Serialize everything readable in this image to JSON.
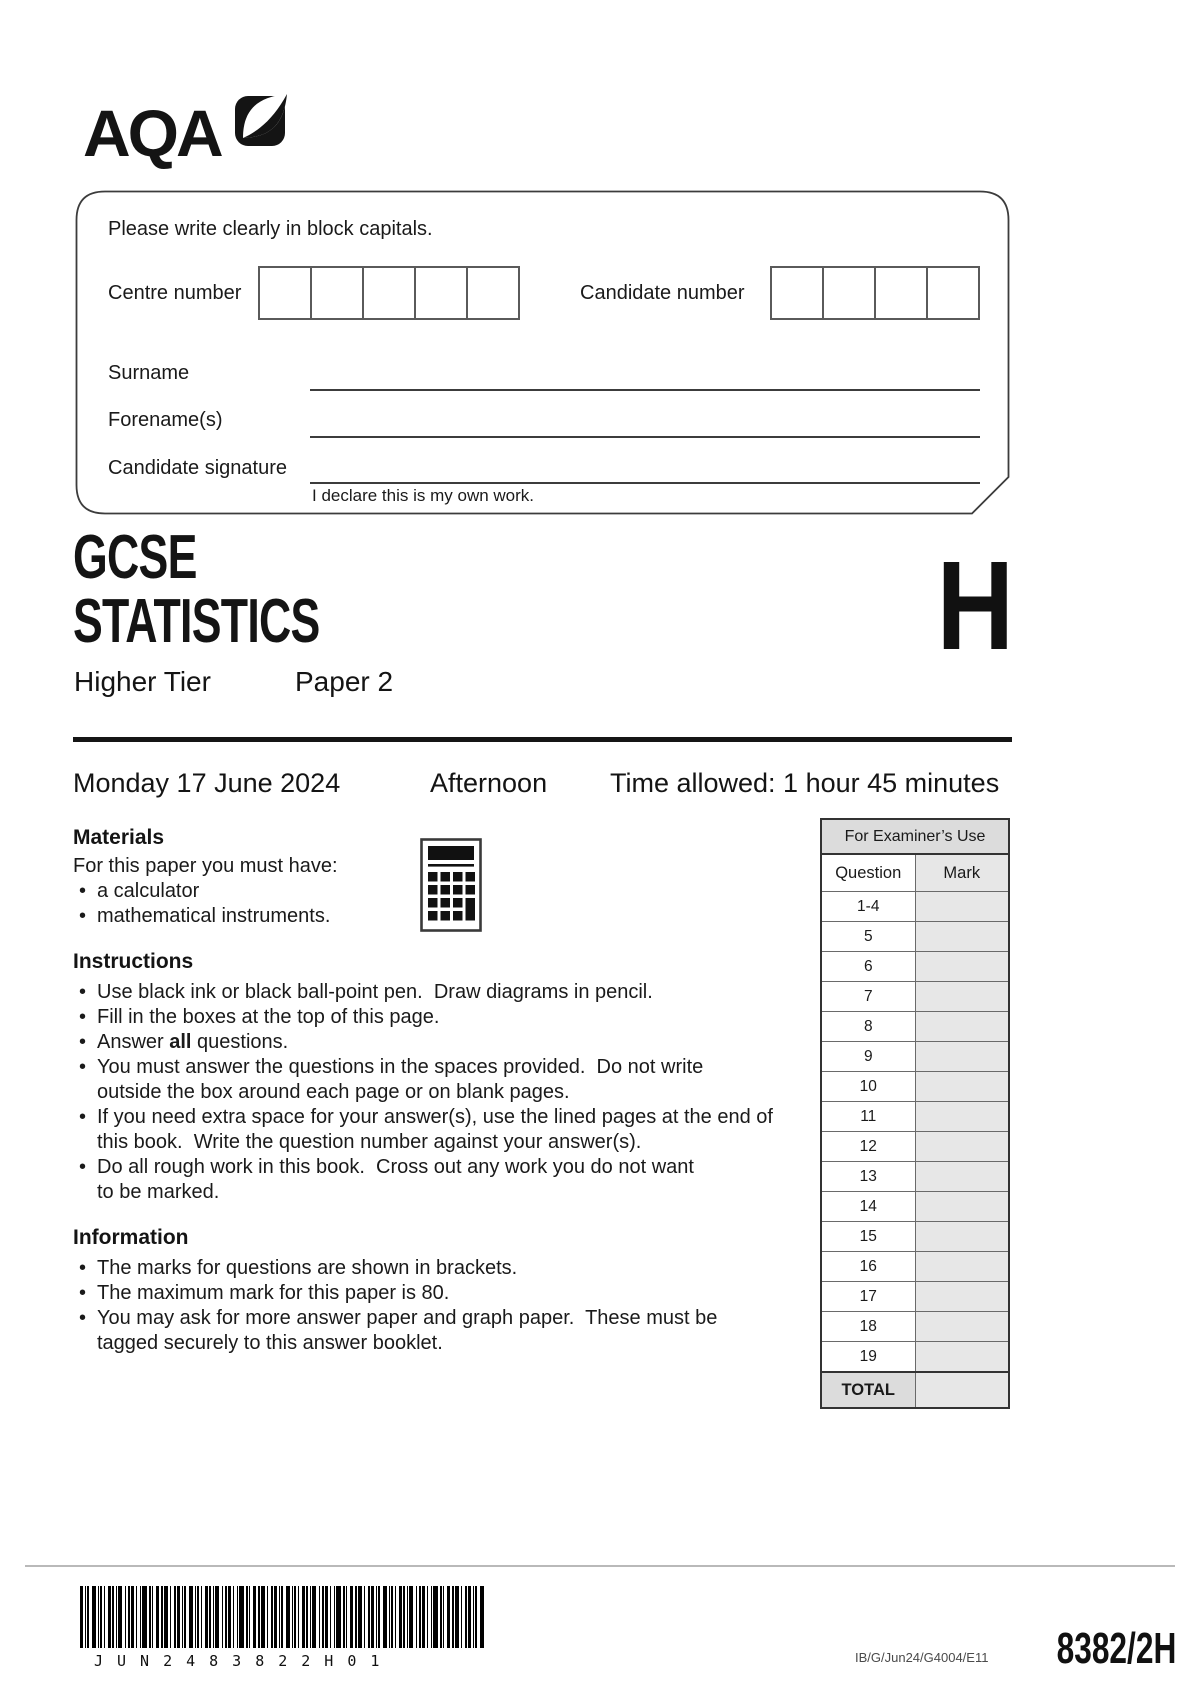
{
  "logo": {
    "text": "AQA"
  },
  "candidate_box": {
    "instruction": "Please write clearly in block capitals.",
    "centre_number_label": "Centre number",
    "centre_number_box_count": 5,
    "candidate_number_label": "Candidate number",
    "candidate_number_box_count": 4,
    "surname_label": "Surname",
    "forenames_label": "Forename(s)",
    "signature_label": "Candidate signature",
    "declaration": "I declare this is my own work."
  },
  "title": {
    "qualification": "GCSE",
    "subject": "STATISTICS",
    "tier": "Higher Tier",
    "paper": "Paper 2",
    "tier_badge": "H"
  },
  "session": {
    "date": "Monday 17 June 2024",
    "session": "Afternoon",
    "time_allowed": "Time allowed: 1 hour 45 minutes"
  },
  "materials": {
    "heading": "Materials",
    "intro": "For this paper you must have:",
    "items": [
      "a calculator",
      "mathematical instruments."
    ]
  },
  "instructions": {
    "heading": "Instructions",
    "items": [
      "Use black ink or black ball-point pen.  Draw diagrams in pencil.",
      "Fill in the boxes at the top of this page.",
      "Answer **all** questions.",
      "You must answer the questions in the spaces provided.  Do not write\noutside the box around each page or on blank pages.",
      "If you need extra space for your answer(s), use the lined pages at the end of\nthis book.  Write the question number against your answer(s).",
      "Do all rough work in this book.  Cross out any work you do not want\nto be marked."
    ]
  },
  "information": {
    "heading": "Information",
    "items": [
      "The marks for questions are shown in brackets.",
      "The maximum mark for this paper is 80.",
      "You may ask for more answer paper and graph paper.  These must be\ntagged securely to this answer booklet."
    ]
  },
  "examiner_table": {
    "title": "For Examiner’s Use",
    "col_question": "Question",
    "col_mark": "Mark",
    "rows": [
      "1-4",
      "5",
      "6",
      "7",
      "8",
      "9",
      "10",
      "11",
      "12",
      "13",
      "14",
      "15",
      "16",
      "17",
      "18",
      "19"
    ],
    "total_label": "TOTAL"
  },
  "footer": {
    "barcode_text": "JUN2483822H01",
    "ref_code": "IB/G/Jun24/G4004/E11",
    "paper_code": "8382/2H"
  }
}
